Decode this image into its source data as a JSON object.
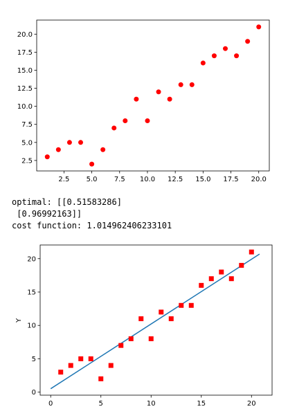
{
  "chart_data": [
    {
      "type": "scatter",
      "title": "",
      "xlabel": "",
      "ylabel": "",
      "xlim": [
        0.05,
        20.95
      ],
      "ylim": [
        1.05,
        21.95
      ],
      "xticks": [
        2.5,
        5.0,
        7.5,
        10.0,
        12.5,
        15.0,
        17.5,
        20.0
      ],
      "xtick_labels": [
        "2.5",
        "5.0",
        "7.5",
        "10.0",
        "12.5",
        "15.0",
        "17.5",
        "20.0"
      ],
      "yticks": [
        2.5,
        5.0,
        7.5,
        10.0,
        12.5,
        15.0,
        17.5,
        20.0
      ],
      "ytick_labels": [
        "2.5",
        "5.0",
        "7.5",
        "10.0",
        "12.5",
        "15.0",
        "17.5",
        "20.0"
      ],
      "grid": false,
      "marker": "circle",
      "color": "#ff0000",
      "x": [
        1,
        2,
        3,
        4,
        5,
        6,
        7,
        8,
        9,
        10,
        11,
        12,
        13,
        14,
        15,
        16,
        17,
        18,
        19,
        20
      ],
      "y": [
        3,
        4,
        5,
        5,
        2,
        4,
        7,
        8,
        11,
        8,
        12,
        11,
        13,
        13,
        16,
        17,
        18,
        17,
        19,
        21
      ]
    },
    {
      "type": "scatter",
      "title": "",
      "xlabel": "",
      "ylabel": "Y",
      "xlim": [
        -1.05,
        22.05
      ],
      "ylim": [
        -0.45,
        22.05
      ],
      "xticks": [
        0,
        5,
        10,
        15,
        20
      ],
      "xtick_labels": [
        "0",
        "5",
        "10",
        "15",
        "20"
      ],
      "yticks": [
        0,
        5,
        10,
        15,
        20
      ],
      "ytick_labels": [
        "0",
        "5",
        "10",
        "15",
        "20"
      ],
      "grid": false,
      "marker": "square",
      "color": "#ff0000",
      "line_color": "#1f77b4",
      "x": [
        1,
        2,
        3,
        4,
        5,
        6,
        7,
        8,
        9,
        10,
        11,
        12,
        13,
        14,
        15,
        16,
        17,
        18,
        19,
        20
      ],
      "y": [
        3,
        4,
        5,
        5,
        2,
        4,
        7,
        8,
        11,
        8,
        12,
        11,
        13,
        13,
        16,
        17,
        18,
        17,
        19,
        21
      ],
      "fit_line": {
        "intercept": 0.51583286,
        "slope": 0.96992163,
        "x_range": [
          0,
          20.8
        ]
      }
    }
  ],
  "output": {
    "line1": "optimal: [[0.51583286]",
    "line2": " [0.96992163]]",
    "line3": "cost function: 1.014962406233101"
  }
}
